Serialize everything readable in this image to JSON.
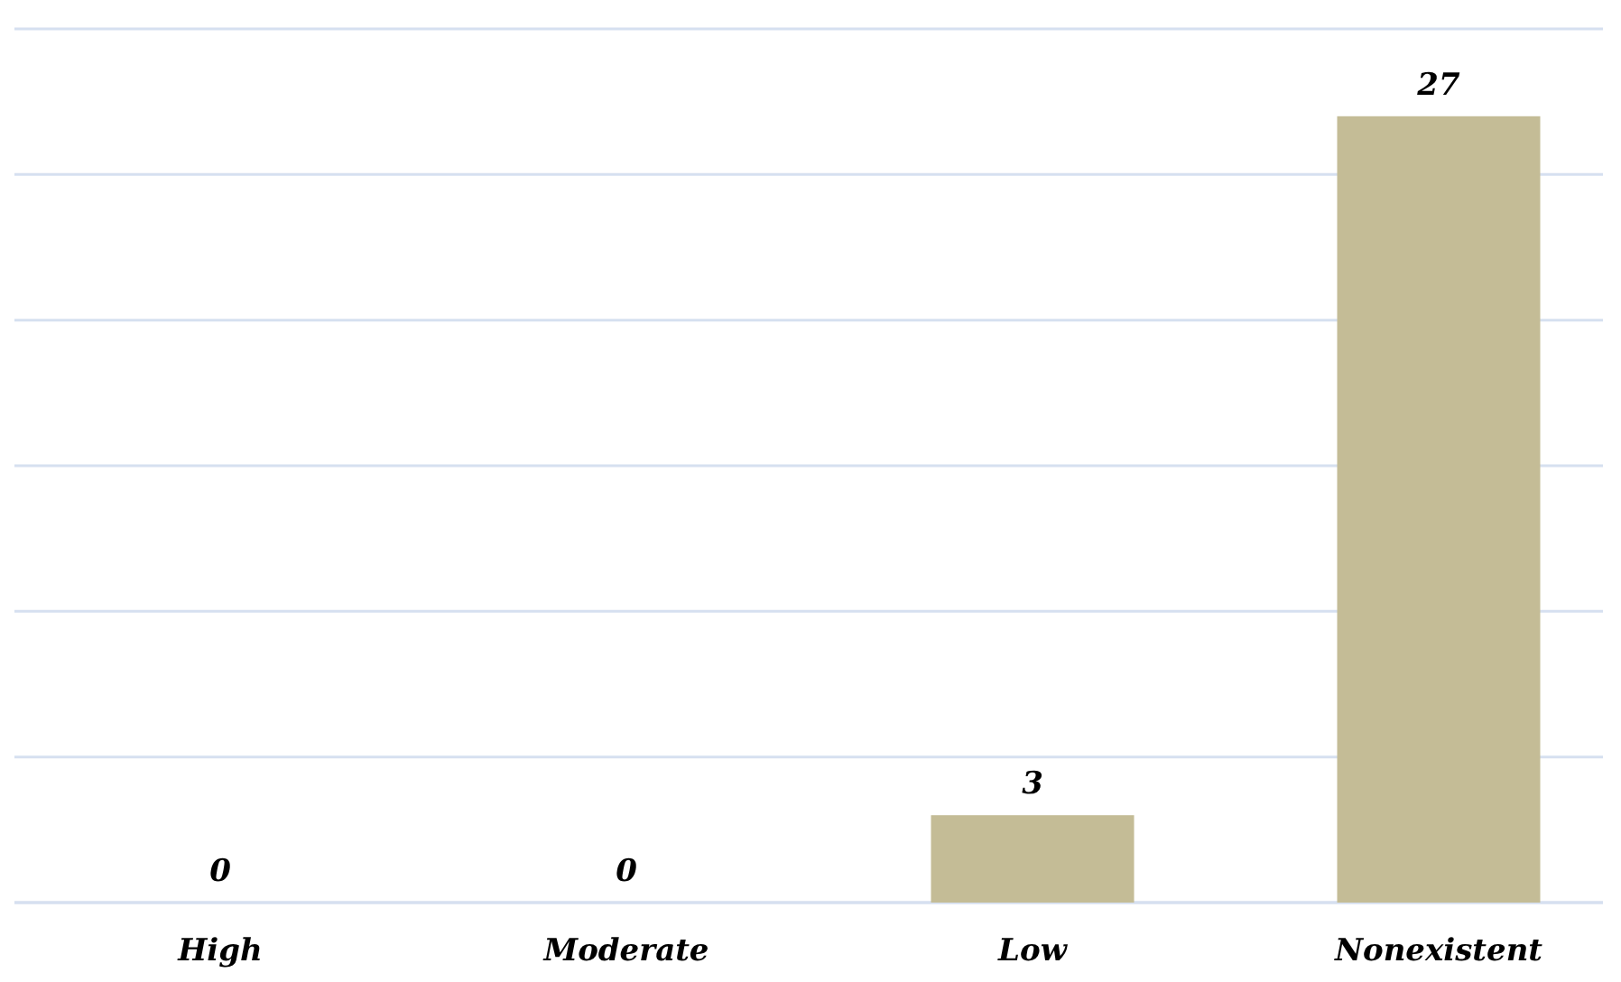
{
  "chart_data": {
    "type": "bar",
    "categories": [
      "High",
      "Moderate",
      "Low",
      "Nonexistent"
    ],
    "values": [
      0,
      0,
      3,
      27
    ],
    "color": "#c4bc96",
    "ylim": [
      0,
      30
    ],
    "yticks": [
      {
        "value": 0,
        "label": null
      },
      {
        "value": 5,
        "label": null
      },
      {
        "value": 10,
        "label": null
      },
      {
        "value": 15,
        "label": null
      },
      {
        "value": 20,
        "label": null
      },
      {
        "value": 25,
        "label": null
      },
      {
        "value": 30,
        "label": null
      }
    ],
    "grid": "y",
    "tick_labels": "x",
    "data_labels": true
  }
}
